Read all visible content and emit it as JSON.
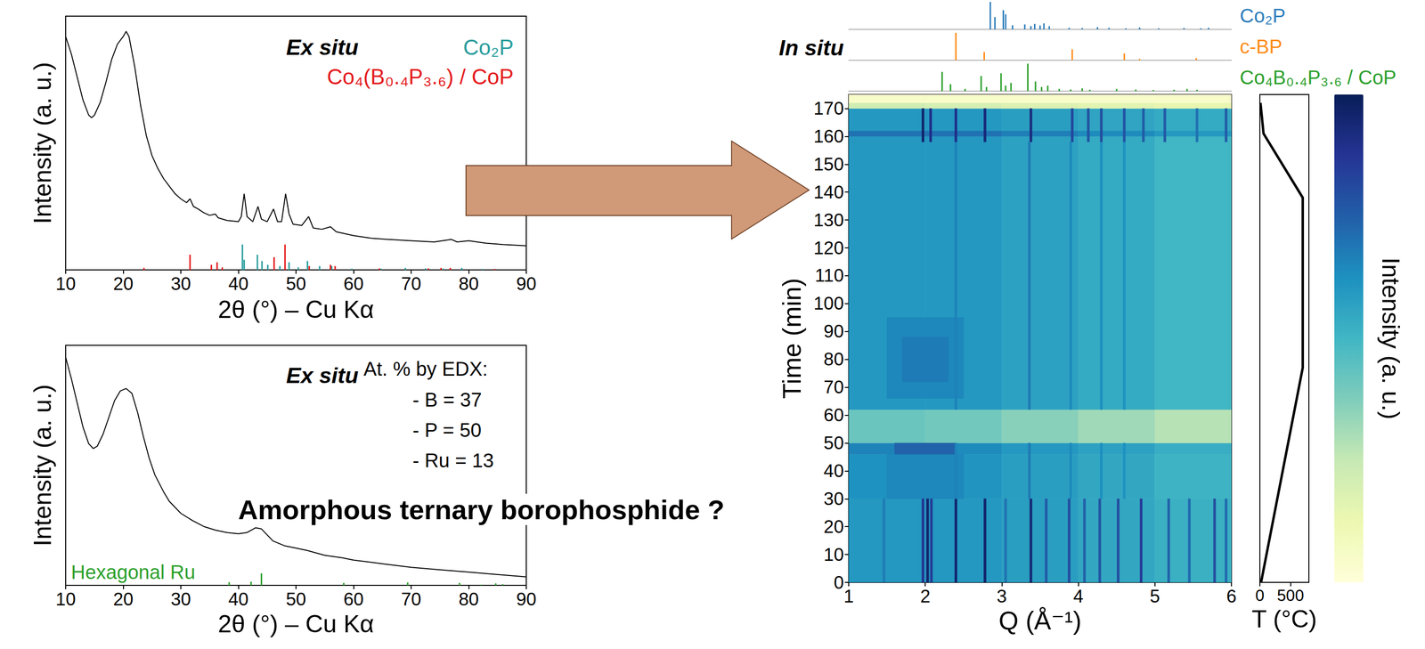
{
  "chart_data": [
    {
      "type": "line",
      "title": "Ex situ",
      "xlabel": "2θ (°) – Cu Kα",
      "ylabel": "Intensity (a. u.)",
      "xlim": [
        10,
        90
      ],
      "xticks": [
        10,
        20,
        30,
        40,
        50,
        60,
        70,
        80,
        90
      ],
      "ylim": [
        0,
        100
      ],
      "tick_labels": "x",
      "color": "#000000",
      "x": [
        10,
        11,
        12,
        13,
        14,
        14.5,
        15,
        16,
        17,
        18,
        19,
        20,
        20.5,
        21,
        22,
        23,
        24,
        25,
        26,
        27,
        28,
        29,
        30,
        31,
        31.6,
        32.2,
        33,
        34,
        35,
        36,
        36.5,
        38,
        40,
        40.5,
        41,
        41.5,
        42.5,
        43.4,
        44,
        45,
        46.1,
        46.8,
        47.5,
        48.2,
        48.8,
        49.5,
        51,
        52.2,
        53,
        54.5,
        56,
        57,
        60,
        63,
        66,
        70,
        74,
        77,
        78,
        80,
        83,
        86,
        90
      ],
      "values": [
        92,
        85,
        76,
        67,
        61,
        60,
        61,
        66,
        74,
        83,
        89,
        92,
        94,
        92,
        80,
        65,
        53,
        45,
        40,
        36,
        33,
        30,
        28,
        26.5,
        28,
        25,
        24,
        22.5,
        21.5,
        22,
        20.5,
        19.5,
        19,
        21,
        30,
        21,
        19,
        25,
        20,
        19,
        24,
        19,
        19,
        30,
        22,
        18,
        17.5,
        21,
        16.5,
        16,
        17,
        15,
        13.5,
        12.5,
        12,
        11.5,
        11,
        12,
        11,
        11.5,
        10.5,
        10,
        9.5
      ],
      "references": [
        {
          "name": "Co₂P",
          "color": "#2a9d9d",
          "x": [
            40.7,
            41.0,
            43.3,
            44.1,
            45.1,
            47.2,
            48.8,
            50.4,
            52.0,
            54.1,
            56.2,
            59.7,
            64.8,
            69.0,
            72.5,
            75.6,
            78.8,
            82.4
          ],
          "values": [
            10,
            4,
            6,
            3.5,
            2,
            1.5,
            3,
            1,
            3.5,
            1.5,
            1.5,
            0.5,
            0.5,
            0.8,
            0.6,
            0.5,
            0.8,
            0.4
          ]
        },
        {
          "name": "Co₄(B₀.₄P₃.₆) / CoP",
          "color": "#e41a1c",
          "x": [
            23.6,
            31.6,
            35.3,
            36.3,
            37.2,
            46.2,
            48.1,
            52.3,
            56.0,
            56.8,
            64.5,
            73.0,
            75.2,
            76.8,
            84.5
          ],
          "values": [
            0.8,
            6,
            2,
            3,
            1,
            5,
            10,
            1.5,
            2,
            1.5,
            0.6,
            0.6,
            0.8,
            0.8,
            0.4
          ]
        }
      ]
    },
    {
      "type": "line",
      "title": "Ex situ",
      "xlabel": "2θ (°) – Cu Kα",
      "ylabel": "Intensity (a. u.)",
      "xlim": [
        10,
        90
      ],
      "xticks": [
        10,
        20,
        30,
        40,
        50,
        60,
        70,
        80,
        90
      ],
      "ylim": [
        0,
        100
      ],
      "tick_labels": "x",
      "color": "#000000",
      "x": [
        10,
        11,
        12,
        13,
        14,
        14.8,
        15.5,
        16.5,
        17.5,
        18.5,
        19.5,
        20.5,
        21.5,
        22.5,
        23.5,
        24.5,
        25.5,
        27,
        28,
        30,
        32,
        34,
        36,
        38,
        40,
        41.5,
        43,
        44,
        45,
        46,
        48,
        50,
        52,
        55,
        58,
        60,
        65,
        70,
        75,
        80,
        85,
        90
      ],
      "values": [
        95,
        86,
        76,
        66,
        59,
        57,
        58,
        63,
        70,
        77,
        81,
        82,
        80,
        72,
        62,
        53,
        46,
        39,
        35,
        30,
        27,
        24.5,
        23,
        22,
        21.5,
        22,
        24,
        23.5,
        21,
        18.5,
        16.5,
        15.5,
        14.5,
        12.5,
        11.5,
        10.5,
        9,
        7.5,
        6.5,
        5.5,
        4.5,
        3.5
      ],
      "references": [
        {
          "name": "Hexagonal Ru",
          "color": "#2ca02c",
          "x": [
            38.4,
            42.2,
            44.0,
            58.3,
            69.4,
            78.4,
            82.2,
            84.7,
            85.9
          ],
          "values": [
            1.3,
            1.5,
            5,
            1,
            1.2,
            1,
            0.3,
            0.8,
            0.5
          ]
        }
      ],
      "edx": {
        "title": "At. % by EDX:",
        "lines": [
          "- B = 37",
          "- P = 50",
          "- Ru = 13"
        ]
      },
      "annotation": "Amorphous ternary borophosphide ?"
    },
    {
      "type": "heatmap",
      "title": "In situ",
      "xlabel": "Q (Å⁻¹)",
      "ylabel": "Time (min)",
      "xlim": [
        1,
        6
      ],
      "xticks": [
        1,
        2,
        3,
        4,
        5,
        6
      ],
      "ylim": [
        0,
        175
      ],
      "yticks": [
        0,
        10,
        20,
        30,
        40,
        50,
        60,
        70,
        80,
        90,
        100,
        110,
        120,
        130,
        140,
        150,
        160,
        170
      ],
      "colorbar": {
        "label": "Intensity (a. u.)",
        "range": [
          0,
          100
        ]
      },
      "cells": [
        [
          1,
          2,
          0,
          30,
          60
        ],
        [
          2,
          3,
          0,
          30,
          60
        ],
        [
          3,
          4,
          0,
          30,
          58
        ],
        [
          4,
          5,
          0,
          30,
          55
        ],
        [
          5,
          6,
          0,
          30,
          52
        ],
        [
          1,
          2,
          30,
          46,
          62
        ],
        [
          2,
          3,
          30,
          46,
          61
        ],
        [
          3,
          4,
          30,
          46,
          58
        ],
        [
          4,
          5,
          30,
          46,
          55
        ],
        [
          5,
          6,
          30,
          46,
          51
        ],
        [
          1,
          2,
          46,
          50,
          66
        ],
        [
          2,
          3,
          46,
          50,
          64
        ],
        [
          3,
          4,
          46,
          50,
          60
        ],
        [
          4,
          5,
          46,
          50,
          57
        ],
        [
          5,
          6,
          46,
          50,
          53
        ],
        [
          1,
          2,
          50,
          62,
          42
        ],
        [
          2,
          3,
          50,
          62,
          40
        ],
        [
          3,
          4,
          50,
          62,
          36
        ],
        [
          4,
          5,
          50,
          62,
          32
        ],
        [
          5,
          6,
          50,
          62,
          28
        ],
        [
          1,
          2,
          62,
          160,
          60
        ],
        [
          2,
          3,
          62,
          160,
          60
        ],
        [
          3,
          4,
          62,
          160,
          57
        ],
        [
          4,
          5,
          62,
          160,
          54
        ],
        [
          5,
          6,
          62,
          160,
          50
        ],
        [
          1,
          2,
          160,
          162,
          70
        ],
        [
          2,
          3,
          160,
          162,
          70
        ],
        [
          3,
          4,
          160,
          162,
          67
        ],
        [
          4,
          5,
          160,
          162,
          64
        ],
        [
          5,
          6,
          160,
          162,
          60
        ],
        [
          1,
          2,
          162,
          170,
          60
        ],
        [
          2,
          3,
          162,
          170,
          60
        ],
        [
          3,
          4,
          162,
          170,
          58
        ],
        [
          4,
          5,
          162,
          170,
          56
        ],
        [
          5,
          6,
          162,
          170,
          54
        ],
        [
          1,
          2,
          170,
          172,
          22
        ],
        [
          2,
          3,
          170,
          172,
          20
        ],
        [
          3,
          4,
          170,
          172,
          18
        ],
        [
          4,
          5,
          170,
          172,
          16
        ],
        [
          5,
          6,
          170,
          172,
          14
        ],
        [
          1,
          2,
          172,
          175,
          5
        ],
        [
          2,
          3,
          172,
          175,
          5
        ],
        [
          3,
          4,
          172,
          175,
          5
        ],
        [
          4,
          5,
          172,
          175,
          5
        ],
        [
          5,
          6,
          172,
          175,
          5
        ],
        [
          1.5,
          2.5,
          30,
          46,
          65
        ],
        [
          1.6,
          2.4,
          46,
          50,
          74
        ],
        [
          1.5,
          2.5,
          66,
          95,
          65
        ],
        [
          1.7,
          2.3,
          72,
          88,
          68
        ],
        [
          1.445,
          1.475,
          0,
          30,
          68
        ],
        [
          1.955,
          1.985,
          0,
          30,
          88
        ],
        [
          2.015,
          2.045,
          0,
          30,
          95
        ],
        [
          2.065,
          2.095,
          0,
          30,
          85
        ],
        [
          2.385,
          2.415,
          0,
          30,
          96
        ],
        [
          2.765,
          2.795,
          0,
          30,
          96
        ],
        [
          3.035,
          3.065,
          0,
          30,
          70
        ],
        [
          3.365,
          3.395,
          0,
          30,
          94
        ],
        [
          3.565,
          3.595,
          0,
          30,
          76
        ],
        [
          3.865,
          3.895,
          0,
          30,
          80
        ],
        [
          4.065,
          4.095,
          0,
          30,
          74
        ],
        [
          4.265,
          4.295,
          0,
          30,
          78
        ],
        [
          4.505,
          4.535,
          0,
          30,
          80
        ],
        [
          4.805,
          4.835,
          0,
          30,
          86
        ],
        [
          5.165,
          5.195,
          0,
          30,
          74
        ],
        [
          5.435,
          5.465,
          0,
          30,
          72
        ],
        [
          5.765,
          5.795,
          0,
          30,
          80
        ],
        [
          5.915,
          5.945,
          0,
          30,
          72
        ],
        [
          2.385,
          2.415,
          30,
          50,
          66
        ],
        [
          3.345,
          3.375,
          30,
          50,
          68
        ],
        [
          3.885,
          3.915,
          30,
          50,
          64
        ],
        [
          4.285,
          4.315,
          30,
          50,
          63
        ],
        [
          4.585,
          4.615,
          30,
          50,
          62
        ],
        [
          2.385,
          2.415,
          62,
          158,
          66
        ],
        [
          3.345,
          3.375,
          62,
          158,
          68
        ],
        [
          3.885,
          3.915,
          62,
          158,
          64
        ],
        [
          4.285,
          4.315,
          62,
          158,
          63
        ],
        [
          4.585,
          4.615,
          62,
          158,
          62
        ],
        [
          1.955,
          1.985,
          158,
          170,
          96
        ],
        [
          2.055,
          2.085,
          158,
          170,
          90
        ],
        [
          2.385,
          2.415,
          158,
          170,
          90
        ],
        [
          2.765,
          2.795,
          158,
          170,
          93
        ],
        [
          3.365,
          3.395,
          158,
          170,
          92
        ],
        [
          3.905,
          3.935,
          158,
          170,
          82
        ],
        [
          4.115,
          4.145,
          158,
          170,
          78
        ],
        [
          4.285,
          4.315,
          158,
          170,
          80
        ],
        [
          4.585,
          4.615,
          158,
          170,
          78
        ],
        [
          4.835,
          4.865,
          158,
          170,
          76
        ],
        [
          5.115,
          5.145,
          158,
          170,
          76
        ],
        [
          5.535,
          5.565,
          158,
          170,
          70
        ],
        [
          5.915,
          5.945,
          158,
          170,
          76
        ]
      ],
      "reference_ylim": [
        0,
        100
      ],
      "references": [
        {
          "name": "Co₂P",
          "color": "#2e7ebc",
          "q": [
            2.85,
            2.91,
            3.02,
            3.05,
            3.14,
            3.3,
            3.38,
            3.43,
            3.5,
            3.55,
            3.62,
            3.88,
            4.05,
            4.25,
            4.4,
            4.62,
            4.8,
            5.05,
            5.38,
            5.6,
            5.7
          ],
          "intensity": [
            100,
            45,
            70,
            55,
            15,
            18,
            12,
            20,
            14,
            22,
            12,
            6,
            5,
            8,
            6,
            4,
            7,
            4,
            5,
            4,
            6
          ]
        },
        {
          "name": "c-BP",
          "color": "#ff8c1a",
          "q": [
            2.4,
            2.77,
            3.92,
            4.6,
            4.8,
            5.54
          ],
          "intensity": [
            100,
            30,
            40,
            25,
            5,
            8
          ]
        },
        {
          "name": "Co₄B₀.₄P₃.₆ / CoP",
          "color": "#2ca02c",
          "q": [
            2.22,
            2.33,
            2.52,
            2.73,
            2.8,
            2.99,
            3.05,
            3.12,
            3.34,
            3.44,
            3.52,
            3.6,
            3.75,
            3.9,
            4.05,
            4.15,
            4.5,
            4.75,
            4.98,
            5.25,
            5.42,
            5.55
          ],
          "intensity": [
            70,
            25,
            8,
            55,
            15,
            65,
            20,
            30,
            100,
            35,
            15,
            20,
            8,
            6,
            10,
            5,
            8,
            6,
            4,
            5,
            8,
            5
          ]
        }
      ]
    },
    {
      "type": "line",
      "xlabel": "T (°C)",
      "xlim": [
        0,
        800
      ],
      "xticks": [
        0,
        500
      ],
      "ylim": [
        0,
        175
      ],
      "tick_labels": "x",
      "color": "#000000",
      "x": [
        20,
        700,
        700,
        60,
        10
      ],
      "values": [
        0,
        77,
        138,
        161,
        172
      ]
    }
  ]
}
